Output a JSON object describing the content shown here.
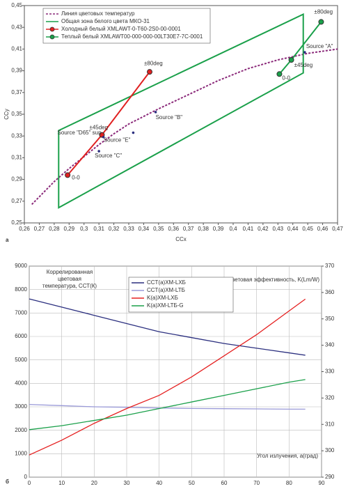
{
  "chart_data": [
    {
      "type": "line",
      "panel_label": "а",
      "xlabel": "CCx",
      "ylabel": "CCy",
      "grid": false,
      "xlim": [
        0.26,
        0.47
      ],
      "ylim": [
        0.25,
        0.45
      ],
      "xticks": [
        {
          "value": 0.26,
          "label": "0,26"
        },
        {
          "value": 0.27,
          "label": "0,27"
        },
        {
          "value": 0.28,
          "label": "0,28"
        },
        {
          "value": 0.29,
          "label": "0,29"
        },
        {
          "value": 0.3,
          "label": "0,3"
        },
        {
          "value": 0.31,
          "label": "0,31"
        },
        {
          "value": 0.32,
          "label": "0,32"
        },
        {
          "value": 0.33,
          "label": "0,33"
        },
        {
          "value": 0.34,
          "label": "0,34"
        },
        {
          "value": 0.35,
          "label": "0,35"
        },
        {
          "value": 0.36,
          "label": "0,36"
        },
        {
          "value": 0.37,
          "label": "0,37"
        },
        {
          "value": 0.38,
          "label": "0,38"
        },
        {
          "value": 0.39,
          "label": "0,39"
        },
        {
          "value": 0.4,
          "label": "0,4"
        },
        {
          "value": 0.41,
          "label": "0,41"
        },
        {
          "value": 0.42,
          "label": "0,42"
        },
        {
          "value": 0.43,
          "label": "0,43"
        },
        {
          "value": 0.44,
          "label": "0,44"
        },
        {
          "value": 0.45,
          "label": "0,45"
        },
        {
          "value": 0.46,
          "label": "0,46"
        },
        {
          "value": 0.47,
          "label": "0,47"
        }
      ],
      "yticks": [
        {
          "value": 0.25,
          "label": "0,25"
        },
        {
          "value": 0.27,
          "label": "0,27"
        },
        {
          "value": 0.29,
          "label": "0,29"
        },
        {
          "value": 0.31,
          "label": "0,31"
        },
        {
          "value": 0.33,
          "label": "0,33"
        },
        {
          "value": 0.35,
          "label": "0,35"
        },
        {
          "value": 0.37,
          "label": "0,37"
        },
        {
          "value": 0.39,
          "label": "0,39"
        },
        {
          "value": 0.41,
          "label": "0,41"
        },
        {
          "value": 0.43,
          "label": "0,43"
        },
        {
          "value": 0.45,
          "label": "0,45"
        }
      ],
      "series": [
        {
          "name": "Линия цветовых температур",
          "color": "#8b2a7a",
          "dashed": true,
          "x": [
            0.265,
            0.28,
            0.29,
            0.3,
            0.31,
            0.32,
            0.33,
            0.35,
            0.37,
            0.39,
            0.41,
            0.43,
            0.45,
            0.47
          ],
          "values": [
            0.267,
            0.288,
            0.3,
            0.311,
            0.322,
            0.332,
            0.341,
            0.355,
            0.368,
            0.381,
            0.392,
            0.4,
            0.406,
            0.41
          ]
        },
        {
          "name": "Общая зона белого цвета МКО-31",
          "color": "#1aa04a",
          "closed": true,
          "x": [
            0.283,
            0.447,
            0.447,
            0.283
          ],
          "values": [
            0.335,
            0.442,
            0.388,
            0.264
          ]
        },
        {
          "name": "Холодный белый XMLAWT-0-T60-2S0-00-0001",
          "color": "#e02020",
          "markers": true,
          "x": [
            0.289,
            0.312,
            0.344
          ],
          "values": [
            0.294,
            0.331,
            0.389
          ],
          "point_labels": [
            "0-0",
            "±45deg",
            "±80deg"
          ]
        },
        {
          "name": "Теплый белый XMLAWT00-000-000-00LT30E7-7C-0001",
          "color": "#1aa04a",
          "markers": true,
          "x": [
            0.431,
            0.439,
            0.459
          ],
          "values": [
            0.387,
            0.4,
            0.435
          ],
          "point_labels": [
            "0-0",
            "±45deg",
            "±80deg"
          ]
        }
      ],
      "annotations": [
        {
          "text": "Source \"D65\" sun",
          "x": 0.313,
          "y": 0.329
        },
        {
          "text": "Source \"B\"",
          "x": 0.348,
          "y": 0.352
        },
        {
          "text": "Source \"E\"",
          "x": 0.333,
          "y": 0.333
        },
        {
          "text": "Source \"C\"",
          "x": 0.31,
          "y": 0.316
        },
        {
          "text": "Source \"A\"",
          "x": 0.448,
          "y": 0.407
        }
      ]
    },
    {
      "type": "line",
      "panel_label": "б",
      "grid": true,
      "ylabel": [
        "Коррелированная",
        "цветовая",
        "температура, ССТ(К)"
      ],
      "y2label": "Спектральная световая эффективность, K(Lm/W)",
      "xlabel": "Угол излучения, a(град)",
      "xlim": [
        0,
        90
      ],
      "xticks": [
        0,
        10,
        20,
        30,
        40,
        50,
        60,
        70,
        80,
        90
      ],
      "ylim": [
        0,
        9000
      ],
      "yticks": [
        0,
        1000,
        2000,
        3000,
        4000,
        5000,
        6000,
        7000,
        8000,
        9000
      ],
      "y2lim": [
        290,
        370
      ],
      "y2ticks": [
        290,
        300,
        310,
        320,
        330,
        340,
        350,
        360,
        370
      ],
      "x": [
        0,
        10,
        20,
        30,
        40,
        50,
        60,
        70,
        80,
        85
      ],
      "series": [
        {
          "name": "CCT(a)XM-LXБ",
          "color": "#2b2f7f",
          "values": [
            7600,
            7250,
            6900,
            6550,
            6200,
            5950,
            5700,
            5500,
            5300,
            5200
          ]
        },
        {
          "name": "CCT(a)XM-LTБ",
          "color": "#9a9ad8",
          "values": [
            3100,
            3050,
            3000,
            2980,
            2950,
            2930,
            2920,
            2910,
            2900,
            2900
          ]
        },
        {
          "name": "K(a)XM-LXБ",
          "color": "#e52020",
          "axis": "y2",
          "values": [
            298.4,
            304,
            310.4,
            316,
            321,
            328,
            336,
            344,
            353,
            357.5
          ]
        },
        {
          "name": "K(a)XM-LTБ-G",
          "color": "#1aa04a",
          "axis": "y2",
          "values": [
            308,
            309.5,
            311.5,
            313.5,
            316,
            318.5,
            321,
            323.5,
            326,
            327
          ]
        }
      ]
    }
  ]
}
